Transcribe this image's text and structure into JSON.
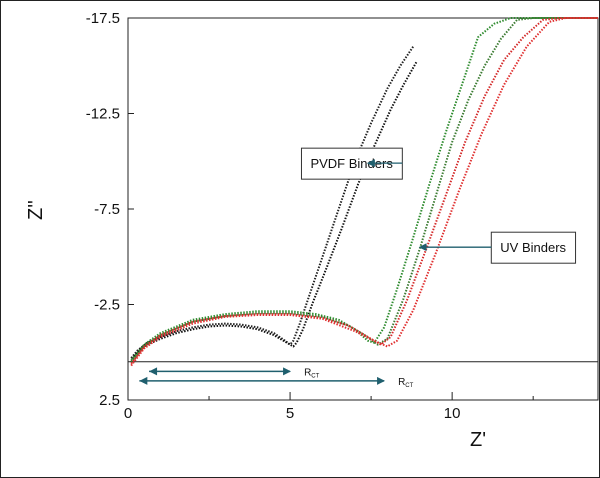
{
  "chart_data": {
    "type": "line",
    "title": "",
    "xlabel": "Z'",
    "ylabel": "Z''",
    "xlim": [
      0,
      14.5
    ],
    "ylim": [
      2.5,
      -17.5
    ],
    "x_ticks": [
      "0",
      "5",
      "10"
    ],
    "x_tick_values": [
      0,
      5,
      10
    ],
    "y_ticks": [
      "-17.5",
      "-12.5",
      "-7.5",
      "-2.5",
      "2.5"
    ],
    "y_tick_values": [
      -17.5,
      -12.5,
      -7.5,
      -2.5,
      2.5
    ],
    "grid": false,
    "series": [
      {
        "group": "PVDF",
        "color": "#222222",
        "x": [
          0.1,
          0.3,
          0.6,
          1.0,
          1.5,
          2.0,
          2.5,
          3.0,
          3.5,
          4.0,
          4.5,
          4.85,
          5.0,
          5.1,
          5.3,
          5.6,
          6.0,
          6.5,
          7.0,
          7.5,
          8.0,
          8.4,
          8.8
        ],
        "y": [
          0.3,
          -0.1,
          -0.5,
          -0.8,
          -1.1,
          -1.3,
          -1.45,
          -1.5,
          -1.45,
          -1.3,
          -1.0,
          -0.6,
          -0.4,
          -0.6,
          -1.5,
          -3.0,
          -5.0,
          -7.5,
          -10.0,
          -12.0,
          -13.8,
          -15.0,
          -16.0
        ]
      },
      {
        "group": "PVDF",
        "color": "#111111",
        "x": [
          0.1,
          0.3,
          0.6,
          1.0,
          1.5,
          2.0,
          2.5,
          3.0,
          3.5,
          4.0,
          4.5,
          4.9,
          5.1,
          5.2,
          5.4,
          5.7,
          6.1,
          6.6,
          7.1,
          7.6,
          8.1,
          8.5,
          8.9
        ],
        "y": [
          0.5,
          0.0,
          -0.4,
          -0.7,
          -1.0,
          -1.2,
          -1.35,
          -1.4,
          -1.35,
          -1.2,
          -0.9,
          -0.5,
          -0.3,
          -0.5,
          -1.2,
          -2.6,
          -4.3,
          -6.5,
          -8.8,
          -10.8,
          -12.7,
          -14.0,
          -15.2
        ]
      },
      {
        "group": "UV",
        "color": "#2e8b2e",
        "x": [
          0.1,
          0.5,
          1.0,
          2.0,
          3.0,
          4.0,
          5.0,
          5.8,
          6.5,
          7.0,
          7.4,
          7.6,
          7.9,
          8.3,
          8.8,
          9.3,
          9.8,
          10.3,
          10.8,
          11.3,
          11.8,
          12.2,
          12.5,
          14.5
        ],
        "y": [
          0.4,
          -0.4,
          -1.0,
          -1.7,
          -2.0,
          -2.15,
          -2.15,
          -2.0,
          -1.7,
          -1.2,
          -0.6,
          -0.5,
          -1.3,
          -3.3,
          -6.0,
          -8.8,
          -11.5,
          -14.0,
          -16.5,
          -17.2,
          -17.5,
          -17.5,
          -17.5,
          -17.5
        ]
      },
      {
        "group": "UV",
        "color": "#3a7a30",
        "x": [
          0.1,
          0.5,
          1.0,
          2.0,
          3.0,
          4.0,
          5.0,
          6.0,
          6.8,
          7.3,
          7.7,
          8.0,
          8.5,
          9.0,
          9.5,
          10.0,
          10.5,
          11.0,
          11.5,
          12.0,
          12.5,
          14.5
        ],
        "y": [
          0.5,
          -0.3,
          -0.9,
          -1.6,
          -1.9,
          -2.05,
          -2.05,
          -1.85,
          -1.4,
          -0.9,
          -0.4,
          -0.7,
          -2.8,
          -5.4,
          -8.2,
          -11.0,
          -13.2,
          -15.0,
          -16.4,
          -17.4,
          -17.5,
          -17.5
        ]
      },
      {
        "group": "UV",
        "color": "#d42a2a",
        "x": [
          0.1,
          0.5,
          1.0,
          2.0,
          3.0,
          4.0,
          5.0,
          6.0,
          6.8,
          7.4,
          7.8,
          8.1,
          8.6,
          9.2,
          9.8,
          10.4,
          11.0,
          11.6,
          12.2,
          12.8,
          13.3,
          14.5
        ],
        "y": [
          0.6,
          -0.3,
          -0.9,
          -1.6,
          -1.9,
          -2.0,
          -2.0,
          -1.8,
          -1.4,
          -0.8,
          -0.4,
          -0.8,
          -2.7,
          -5.4,
          -8.2,
          -11.0,
          -13.4,
          -15.3,
          -16.5,
          -17.4,
          -17.5,
          -17.5
        ]
      },
      {
        "group": "UV",
        "color": "#e03030",
        "x": [
          0.1,
          0.5,
          1.0,
          2.0,
          3.0,
          4.0,
          5.0,
          6.0,
          7.0,
          7.6,
          8.0,
          8.3,
          8.8,
          9.5,
          10.2,
          10.9,
          11.6,
          12.3,
          13.0,
          13.5,
          14.5
        ],
        "y": [
          0.7,
          -0.2,
          -0.8,
          -1.5,
          -1.85,
          -1.95,
          -1.95,
          -1.75,
          -1.1,
          -0.6,
          -0.3,
          -0.6,
          -2.2,
          -5.2,
          -8.4,
          -11.4,
          -14.0,
          -16.0,
          -17.3,
          -17.5,
          -17.5
        ]
      }
    ],
    "annotations": [
      {
        "text": "PVDF Binders",
        "x": 6.9,
        "y": -9.9,
        "arrow_to": [
          7.4,
          -9.9
        ]
      },
      {
        "text": "UV Binders",
        "x": 12.5,
        "y": -5.5,
        "arrow_to": [
          9.0,
          -5.5
        ]
      }
    ],
    "rct": [
      {
        "label": "R",
        "sub": "CT",
        "x_start": 0.65,
        "x_end": 5.0,
        "y": 1.0
      },
      {
        "label": "R",
        "sub": "CT",
        "x_start": 0.35,
        "x_end": 7.9,
        "y": 1.5
      }
    ],
    "baseline_y": 0.5,
    "annotation_color": "#1f5f6e"
  }
}
